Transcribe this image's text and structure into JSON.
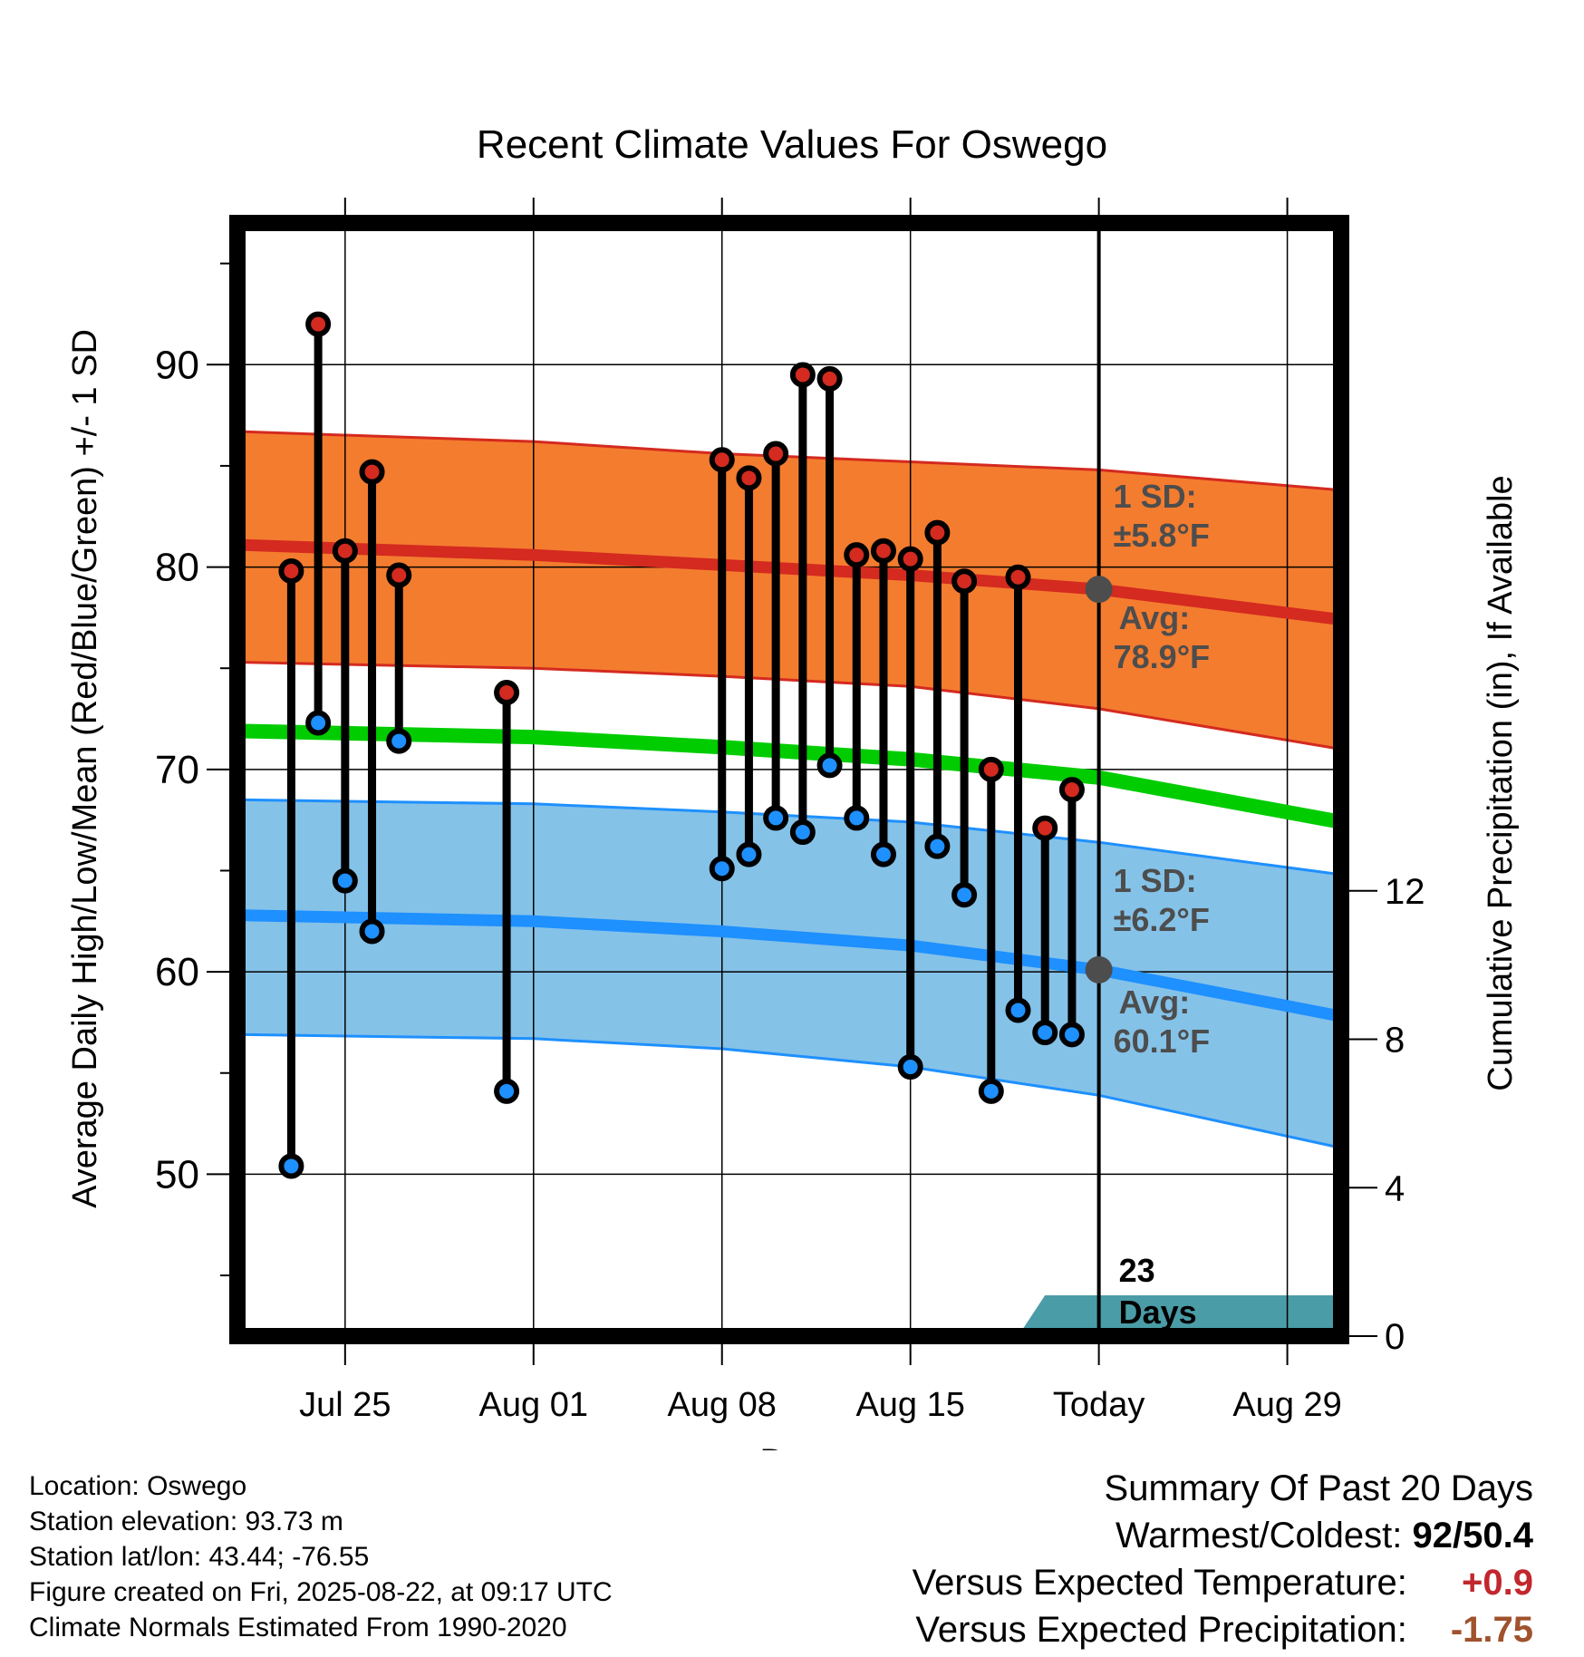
{
  "chart_data": {
    "type": "line",
    "title": "Recent Climate Values For Oswego",
    "xlabel": "Day",
    "ylabel": "Average Daily High/Low/Mean (Red/Blue/Green) +/- 1 SD",
    "y2label": "Cumulative Precipitation (in), If Available",
    "x_start": "2025-07-21",
    "x_end": "2025-08-31",
    "ylim": [
      42,
      97
    ],
    "y2lim": [
      0,
      30
    ],
    "x_ticks": [
      {
        "date": "2025-07-25",
        "label": "Jul 25"
      },
      {
        "date": "2025-08-01",
        "label": "Aug 01"
      },
      {
        "date": "2025-08-08",
        "label": "Aug 08"
      },
      {
        "date": "2025-08-15",
        "label": "Aug 15"
      },
      {
        "date": "2025-08-22",
        "label": "Today"
      },
      {
        "date": "2025-08-29",
        "label": "Aug 29"
      }
    ],
    "y_ticks": [
      50,
      60,
      70,
      80,
      90
    ],
    "y2_ticks": [
      0,
      4,
      8,
      12
    ],
    "today": "2025-08-22",
    "normals": {
      "dates": [
        "2025-07-21",
        "2025-08-01",
        "2025-08-08",
        "2025-08-15",
        "2025-08-22",
        "2025-08-31"
      ],
      "high_mean": [
        81.1,
        80.6,
        80.1,
        79.6,
        78.9,
        77.4
      ],
      "high_upper": [
        86.7,
        86.2,
        85.6,
        85.2,
        84.8,
        83.8
      ],
      "high_lower": [
        75.3,
        75.0,
        74.6,
        74.1,
        73.0,
        71.0
      ],
      "low_mean": [
        62.8,
        62.5,
        62.0,
        61.3,
        60.1,
        57.8
      ],
      "low_upper": [
        68.5,
        68.3,
        67.9,
        67.4,
        66.4,
        64.8
      ],
      "low_lower": [
        56.9,
        56.7,
        56.2,
        55.3,
        53.9,
        51.3
      ],
      "mean": [
        71.9,
        71.6,
        71.1,
        70.5,
        69.6,
        67.4
      ],
      "colors": {
        "high": "#d42a1f",
        "high_band": "#f47c2f",
        "low": "#1e90ff",
        "low_band": "#85c2e8",
        "mean": "#00cc00"
      }
    },
    "annotations": {
      "high_sd_label": "1 SD:",
      "high_sd_value": "±5.8°F",
      "high_avg_label": "Avg:",
      "high_avg_value": "78.9°F",
      "low_sd_label": "1 SD:",
      "low_sd_value": "±6.2°F",
      "low_avg_label": "Avg:",
      "low_avg_value": "60.1°F",
      "days_count": "23",
      "days_label": "Days"
    },
    "observations": [
      {
        "date": "2025-07-23",
        "high": 79.8,
        "low": 50.4
      },
      {
        "date": "2025-07-24",
        "high": 92.0,
        "low": 72.3
      },
      {
        "date": "2025-07-25",
        "high": 80.8,
        "low": 64.5
      },
      {
        "date": "2025-07-26",
        "high": 84.7,
        "low": 62.0
      },
      {
        "date": "2025-07-27",
        "high": 79.6,
        "low": 71.4
      },
      {
        "date": "2025-07-31",
        "high": 73.8,
        "low": 54.1
      },
      {
        "date": "2025-08-08",
        "high": 85.3,
        "low": 65.1
      },
      {
        "date": "2025-08-09",
        "high": 84.4,
        "low": 65.8
      },
      {
        "date": "2025-08-10",
        "high": 85.6,
        "low": 67.6
      },
      {
        "date": "2025-08-11",
        "high": 89.5,
        "low": 66.9
      },
      {
        "date": "2025-08-12",
        "high": 89.3,
        "low": 70.2
      },
      {
        "date": "2025-08-13",
        "high": 80.6,
        "low": 67.6
      },
      {
        "date": "2025-08-14",
        "high": 80.8,
        "low": 65.8
      },
      {
        "date": "2025-08-15",
        "high": 80.4,
        "low": 55.3
      },
      {
        "date": "2025-08-16",
        "high": 81.7,
        "low": 66.2
      },
      {
        "date": "2025-08-17",
        "high": 79.3,
        "low": 63.8
      },
      {
        "date": "2025-08-18",
        "high": 70.0,
        "low": 54.1
      },
      {
        "date": "2025-08-19",
        "high": 79.5,
        "low": 58.1
      },
      {
        "date": "2025-08-20",
        "high": 67.1,
        "low": 57.0
      },
      {
        "date": "2025-08-21",
        "high": 69.0,
        "low": 56.9
      }
    ],
    "precipitation": {
      "color": "#4a9ca6",
      "dates": [
        "2025-07-21",
        "2025-07-29",
        "2025-08-19",
        "2025-08-20",
        "2025-08-31"
      ],
      "values": [
        0,
        0,
        0,
        1.1,
        1.1
      ]
    }
  },
  "info": {
    "location": "Location: Oswego",
    "elevation": "Station elevation: 93.73 m",
    "latlon": "Station lat/lon: 43.44; -76.55",
    "created": "Figure created on Fri, 2025-08-22, at 09:17 UTC",
    "normals_source": "Climate Normals Estimated From 1990-2020"
  },
  "summary": {
    "title": "Summary Of Past 20 Days",
    "warmest_label": "Warmest/Coldest:",
    "warmest_value": "92/50.4",
    "temp_label": "Versus Expected Temperature:",
    "temp_value": "+0.9",
    "temp_color": "#c1272d",
    "precip_label": "Versus Expected Precipitation:",
    "precip_value": "-1.75",
    "precip_color": "#a0522d"
  }
}
